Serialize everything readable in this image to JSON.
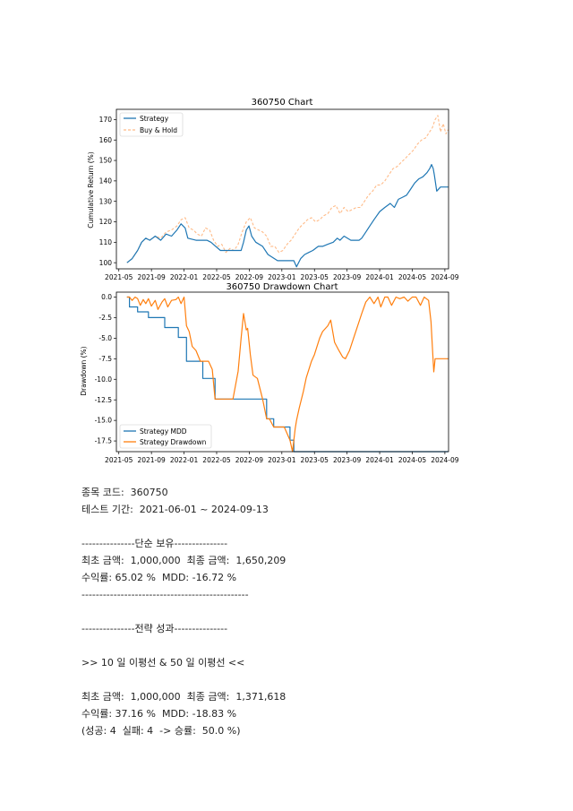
{
  "chart_data": [
    {
      "type": "line",
      "title": "360750 Chart",
      "xlabel": "",
      "ylabel": "Cumulative Return (%)",
      "xlim": [
        "2021-05",
        "2024-09"
      ],
      "ylim": [
        97,
        175
      ],
      "x_ticks": [
        "2021-05",
        "2021-09",
        "2022-01",
        "2022-05",
        "2022-09",
        "2023-01",
        "2023-05",
        "2023-09",
        "2024-01",
        "2024-05",
        "2024-09"
      ],
      "y_ticks": [
        100,
        110,
        120,
        130,
        140,
        150,
        160,
        170
      ],
      "legend_position": "top-left",
      "colors": {
        "Strategy": "#1f77b4",
        "Buy & Hold": "#ffbb88"
      },
      "series": [
        {
          "name": "Strategy",
          "style": "solid",
          "x": [
            "2021-06-01",
            "2021-06-20",
            "2021-07-10",
            "2021-07-25",
            "2021-08-10",
            "2021-08-25",
            "2021-09-15",
            "2021-10-05",
            "2021-10-25",
            "2021-11-15",
            "2021-12-05",
            "2021-12-20",
            "2022-01-05",
            "2022-01-15",
            "2022-02-15",
            "2022-03-15",
            "2022-03-25",
            "2022-04-10",
            "2022-05-15",
            "2022-06-20",
            "2022-07-20",
            "2022-08-01",
            "2022-08-10",
            "2022-08-20",
            "2022-08-30",
            "2022-09-10",
            "2022-09-25",
            "2022-10-20",
            "2022-11-10",
            "2022-12-15",
            "2023-01-15",
            "2023-02-10",
            "2023-02-15",
            "2023-02-25",
            "2023-03-10",
            "2023-03-25",
            "2023-04-10",
            "2023-04-25",
            "2023-05-15",
            "2023-06-01",
            "2023-06-20",
            "2023-07-10",
            "2023-07-25",
            "2023-08-05",
            "2023-08-20",
            "2023-09-15",
            "2023-10-15",
            "2023-10-25",
            "2023-11-10",
            "2023-11-25",
            "2023-12-10",
            "2024-01-01",
            "2024-01-20",
            "2024-02-10",
            "2024-02-25",
            "2024-03-10",
            "2024-03-25",
            "2024-04-10",
            "2024-04-25",
            "2024-05-10",
            "2024-05-25",
            "2024-06-10",
            "2024-06-25",
            "2024-07-05",
            "2024-07-12",
            "2024-07-18",
            "2024-07-22",
            "2024-08-01",
            "2024-08-15",
            "2024-09-13"
          ],
          "values": [
            100,
            102,
            106,
            110,
            112,
            111,
            113,
            111,
            114,
            113,
            116,
            119,
            117,
            112,
            111,
            111,
            111,
            110,
            106,
            106,
            106,
            106,
            110,
            116,
            118,
            113,
            110,
            108,
            104,
            101,
            101,
            101,
            101,
            98,
            102,
            104,
            105,
            106,
            108,
            108,
            109,
            110,
            112,
            111,
            113,
            111,
            111,
            112,
            115,
            118,
            121,
            125,
            127,
            129,
            127,
            131,
            132,
            133,
            136,
            139,
            141,
            142,
            144,
            146,
            148,
            146,
            143,
            135,
            137,
            137
          ]
        },
        {
          "name": "Buy & Hold",
          "style": "dashed",
          "x": [
            "2021-06-01",
            "2021-06-20",
            "2021-07-10",
            "2021-07-25",
            "2021-08-10",
            "2021-08-25",
            "2021-09-15",
            "2021-10-05",
            "2021-10-25",
            "2021-11-15",
            "2021-12-05",
            "2021-12-20",
            "2022-01-05",
            "2022-01-20",
            "2022-02-05",
            "2022-02-20",
            "2022-03-05",
            "2022-03-20",
            "2022-04-05",
            "2022-04-20",
            "2022-05-05",
            "2022-05-20",
            "2022-06-05",
            "2022-06-20",
            "2022-07-05",
            "2022-07-20",
            "2022-08-05",
            "2022-08-20",
            "2022-09-05",
            "2022-09-20",
            "2022-10-05",
            "2022-10-20",
            "2022-11-05",
            "2022-11-20",
            "2022-12-05",
            "2022-12-20",
            "2023-01-05",
            "2023-01-20",
            "2023-02-05",
            "2023-02-20",
            "2023-03-05",
            "2023-03-20",
            "2023-04-05",
            "2023-04-20",
            "2023-05-05",
            "2023-05-20",
            "2023-06-05",
            "2023-06-20",
            "2023-07-05",
            "2023-07-20",
            "2023-08-05",
            "2023-08-20",
            "2023-09-05",
            "2023-09-20",
            "2023-10-05",
            "2023-10-20",
            "2023-11-05",
            "2023-11-20",
            "2023-12-05",
            "2023-12-20",
            "2024-01-05",
            "2024-01-20",
            "2024-02-05",
            "2024-02-20",
            "2024-03-05",
            "2024-03-20",
            "2024-04-05",
            "2024-04-20",
            "2024-05-05",
            "2024-05-20",
            "2024-06-05",
            "2024-06-20",
            "2024-07-05",
            "2024-07-15",
            "2024-07-25",
            "2024-08-05",
            "2024-08-15",
            "2024-08-25",
            "2024-09-05",
            "2024-09-13"
          ],
          "values": [
            100,
            102,
            106,
            110,
            112,
            111,
            113,
            112,
            115,
            116,
            118,
            121,
            122,
            117,
            116,
            114,
            113,
            117,
            116,
            111,
            108,
            109,
            105,
            107,
            106,
            109,
            115,
            120,
            122,
            117,
            116,
            115,
            113,
            108,
            108,
            105,
            106,
            109,
            111,
            114,
            117,
            119,
            121,
            122,
            120,
            121,
            123,
            124,
            127,
            128,
            124,
            127,
            125,
            126,
            127,
            127,
            130,
            133,
            135,
            138,
            138,
            140,
            143,
            146,
            147,
            149,
            151,
            153,
            155,
            158,
            160,
            161,
            164,
            166,
            170,
            172,
            164,
            168,
            163,
            165
          ]
        }
      ]
    },
    {
      "type": "line",
      "title": "360750 Drawdown Chart",
      "xlabel": "",
      "ylabel": "Drawdown (%)",
      "xlim": [
        "2021-05",
        "2024-09"
      ],
      "ylim": [
        -18.8,
        0.6
      ],
      "x_ticks": [
        "2021-05",
        "2021-09",
        "2022-01",
        "2022-05",
        "2022-09",
        "2023-01",
        "2023-05",
        "2023-09",
        "2024-01",
        "2024-05",
        "2024-09"
      ],
      "y_ticks": [
        0.0,
        -2.5,
        -5.0,
        -7.5,
        -10.0,
        -12.5,
        -15.0,
        -17.5
      ],
      "legend_position": "bottom-left",
      "colors": {
        "Strategy MDD": "#1f77b4",
        "Strategy Drawdown": "#ff7f0e"
      },
      "series": [
        {
          "name": "Strategy MDD",
          "style": "step",
          "x": [
            "2021-06-01",
            "2021-06-10",
            "2021-06-10",
            "2021-07-10",
            "2021-07-10",
            "2021-08-20",
            "2021-08-20",
            "2021-10-20",
            "2021-10-20",
            "2021-12-10",
            "2021-12-10",
            "2022-01-10",
            "2022-01-10",
            "2022-03-10",
            "2022-03-10",
            "2022-04-25",
            "2022-04-25",
            "2022-11-05",
            "2022-11-05",
            "2022-12-01",
            "2022-12-01",
            "2023-02-01",
            "2023-02-01",
            "2023-02-15",
            "2023-02-15",
            "2024-09-13"
          ],
          "values": [
            0,
            0,
            -1.2,
            -1.2,
            -1.8,
            -1.8,
            -2.5,
            -2.5,
            -3.7,
            -3.7,
            -4.9,
            -4.9,
            -7.8,
            -7.8,
            -9.9,
            -9.9,
            -12.4,
            -12.4,
            -14.8,
            -14.8,
            -15.8,
            -15.8,
            -17.4,
            -17.4,
            -18.8,
            -18.8
          ]
        },
        {
          "name": "Strategy Drawdown",
          "style": "solid",
          "x": [
            "2021-06-01",
            "2021-06-10",
            "2021-06-20",
            "2021-07-01",
            "2021-07-10",
            "2021-07-20",
            "2021-08-01",
            "2021-08-10",
            "2021-08-20",
            "2021-09-01",
            "2021-09-15",
            "2021-09-25",
            "2021-10-10",
            "2021-10-20",
            "2021-11-01",
            "2021-11-15",
            "2021-12-01",
            "2021-12-10",
            "2021-12-20",
            "2022-01-01",
            "2022-01-10",
            "2022-01-20",
            "2022-02-01",
            "2022-02-15",
            "2022-03-01",
            "2022-03-15",
            "2022-04-01",
            "2022-04-15",
            "2022-04-25",
            "2022-05-10",
            "2022-06-01",
            "2022-07-01",
            "2022-07-20",
            "2022-08-01",
            "2022-08-10",
            "2022-08-20",
            "2022-08-25",
            "2022-09-05",
            "2022-09-15",
            "2022-10-01",
            "2022-10-20",
            "2022-11-05",
            "2022-11-15",
            "2022-12-01",
            "2022-12-20",
            "2023-01-10",
            "2023-02-01",
            "2023-02-10",
            "2023-02-20",
            "2023-02-25",
            "2023-03-05",
            "2023-03-20",
            "2023-04-01",
            "2023-04-20",
            "2023-05-01",
            "2023-05-20",
            "2023-06-01",
            "2023-06-20",
            "2023-07-01",
            "2023-07-15",
            "2023-08-01",
            "2023-08-15",
            "2023-08-25",
            "2023-09-10",
            "2023-09-25",
            "2023-10-10",
            "2023-10-25",
            "2023-11-10",
            "2023-11-25",
            "2023-12-10",
            "2023-12-25",
            "2024-01-05",
            "2024-01-20",
            "2024-02-01",
            "2024-02-15",
            "2024-03-01",
            "2024-03-15",
            "2024-04-01",
            "2024-04-15",
            "2024-05-01",
            "2024-05-15",
            "2024-06-01",
            "2024-06-15",
            "2024-07-01",
            "2024-07-10",
            "2024-07-15",
            "2024-07-20",
            "2024-07-25",
            "2024-08-05",
            "2024-08-15",
            "2024-09-13"
          ],
          "values": [
            0,
            0,
            -0.4,
            0,
            -0.2,
            -1,
            -0.3,
            -0.8,
            -0.2,
            -1.1,
            -0.4,
            -1.5,
            -0.6,
            -0.2,
            -1.2,
            -0.4,
            -0.3,
            0,
            -0.8,
            0,
            -3.5,
            -4.2,
            -6,
            -6.5,
            -7.8,
            -7.8,
            -7.8,
            -8.8,
            -12.4,
            -12.4,
            -12.4,
            -12.4,
            -9,
            -5,
            -2,
            -4,
            -3.8,
            -7,
            -9.5,
            -9.9,
            -12.4,
            -14.8,
            -14.8,
            -15.8,
            -15.8,
            -15.8,
            -17.4,
            -18.8,
            -16,
            -15,
            -13.5,
            -11.5,
            -9.8,
            -7.8,
            -7,
            -5,
            -4.2,
            -3.5,
            -2.8,
            -5.5,
            -6.5,
            -7.3,
            -7.5,
            -6.5,
            -5,
            -3.5,
            -2,
            -0.6,
            0,
            -0.8,
            0,
            -1.2,
            0,
            0,
            -1,
            0,
            -0.2,
            0,
            -0.5,
            0,
            0,
            -1,
            0,
            -0.4,
            -3,
            -6,
            -9.1,
            -7.5,
            -7.5,
            -7.5,
            -7.5
          ]
        }
      ]
    }
  ],
  "report": {
    "code_line": "종목 코드:  360750",
    "period_line": "테스트 기간:  2021-06-01 ~ 2024-09-13",
    "blank1": "",
    "hold_header": "---------------단순 보유---------------",
    "hold_amounts": "최초 금액:  1,000,000  최종 금액:  1,650,209",
    "hold_returns": "수익률: 65.02 %  MDD: -16.72 %",
    "divider": "-----------------------------------------------",
    "blank2": "",
    "strategy_header": "---------------전략 성과---------------",
    "blank3": "",
    "strategy_name": ">> 10 일 이평선 & 50 일 이평선 <<",
    "blank4": "",
    "strategy_amounts": "최초 금액:  1,000,000  최종 금액:  1,371,618",
    "strategy_returns": "수익률: 37.16 %  MDD: -18.83 %",
    "strategy_winrate": "(성공: 4  실패: 4  -> 승률:  50.0 %)"
  }
}
